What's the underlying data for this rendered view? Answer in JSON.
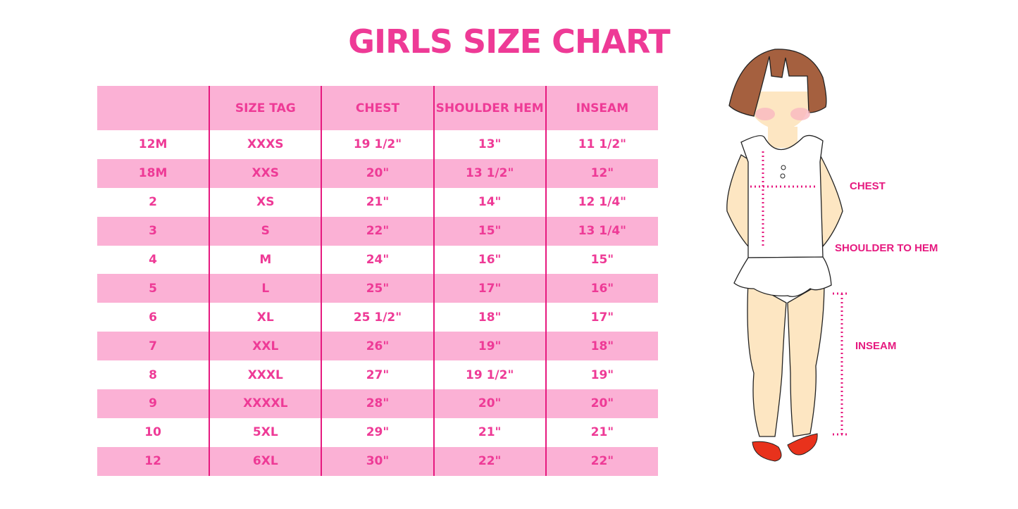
{
  "title": "GIRLS SIZE CHART",
  "table": {
    "headers": [
      "",
      "SIZE TAG",
      "CHEST",
      "SHOULDER HEM",
      "INSEAM"
    ],
    "rows": [
      [
        "12M",
        "XXXS",
        "19 1/2\"",
        "13\"",
        "11 1/2\""
      ],
      [
        "18M",
        "XXS",
        "20\"",
        "13 1/2\"",
        "12\""
      ],
      [
        "2",
        "XS",
        "21\"",
        "14\"",
        "12 1/4\""
      ],
      [
        "3",
        "S",
        "22\"",
        "15\"",
        "13 1/4\""
      ],
      [
        "4",
        "M",
        "24\"",
        "16\"",
        "15\""
      ],
      [
        "5",
        "L",
        "25\"",
        "17\"",
        "16\""
      ],
      [
        "6",
        "XL",
        "25 1/2\"",
        "18\"",
        "17\""
      ],
      [
        "7",
        "XXL",
        "26\"",
        "19\"",
        "18\""
      ],
      [
        "8",
        "XXXL",
        "27\"",
        "19 1/2\"",
        "19\""
      ],
      [
        "9",
        "XXXXL",
        "28\"",
        "20\"",
        "20\""
      ],
      [
        "10",
        "5XL",
        "29\"",
        "21\"",
        "21\""
      ],
      [
        "12",
        "6XL",
        "30\"",
        "22\"",
        "22\""
      ]
    ]
  },
  "illustration": {
    "labels": {
      "chest": "CHEST",
      "shoulder_to_hem": "SHOULDER TO HEM",
      "inseam": "INSEAM"
    }
  },
  "colors": {
    "accent": "#ee3a96",
    "row_pink": "#fbb1d5",
    "divider": "#e6197f"
  }
}
